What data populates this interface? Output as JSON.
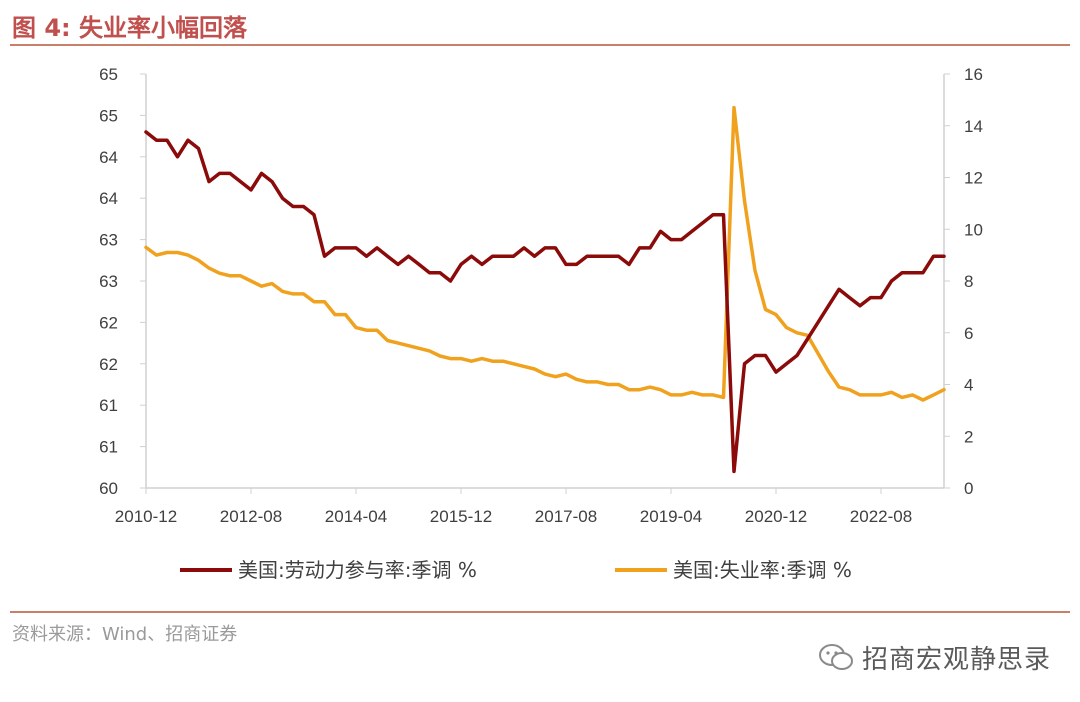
{
  "figure_title": "图 4:  失业率小幅回落",
  "source": "资料来源：Wind、招商证券",
  "watermark": "招商宏观静思录",
  "colors": {
    "lfpr": "#8b0a0a",
    "unemp": "#f0a21e",
    "accent": "#c0504d"
  },
  "chart_data": {
    "type": "line",
    "x_tick_labels": [
      "2010-12",
      "2012-08",
      "2014-04",
      "2015-12",
      "2017-08",
      "2019-04",
      "2020-12",
      "2022-08"
    ],
    "left_axis": {
      "ylim": [
        60,
        65
      ],
      "tick_labels": [
        "60",
        "61",
        "61",
        "62",
        "62",
        "63",
        "63",
        "64",
        "64",
        "65",
        "65"
      ]
    },
    "right_axis": {
      "ylim": [
        0,
        16
      ],
      "tick_labels": [
        "0",
        "2",
        "4",
        "6",
        "8",
        "10",
        "12",
        "14",
        "16"
      ]
    },
    "grid": false,
    "legend_position": "bottom",
    "series": [
      {
        "name": "美国:劳动力参与率:季调 %",
        "axis": "left",
        "x": [
          "2010-12",
          "2011-02",
          "2011-04",
          "2011-06",
          "2011-08",
          "2011-10",
          "2011-12",
          "2012-02",
          "2012-04",
          "2012-06",
          "2012-08",
          "2012-10",
          "2012-12",
          "2013-02",
          "2013-04",
          "2013-06",
          "2013-08",
          "2013-10",
          "2013-12",
          "2014-02",
          "2014-04",
          "2014-06",
          "2014-08",
          "2014-10",
          "2014-12",
          "2015-02",
          "2015-04",
          "2015-06",
          "2015-08",
          "2015-10",
          "2015-12",
          "2016-02",
          "2016-04",
          "2016-06",
          "2016-08",
          "2016-10",
          "2016-12",
          "2017-02",
          "2017-04",
          "2017-06",
          "2017-08",
          "2017-10",
          "2017-12",
          "2018-02",
          "2018-04",
          "2018-06",
          "2018-08",
          "2018-10",
          "2018-12",
          "2019-02",
          "2019-04",
          "2019-06",
          "2019-08",
          "2019-10",
          "2019-12",
          "2020-02",
          "2020-04",
          "2020-06",
          "2020-08",
          "2020-10",
          "2020-12",
          "2021-02",
          "2021-04",
          "2021-06",
          "2021-08",
          "2021-10",
          "2021-12",
          "2022-02",
          "2022-04",
          "2022-06",
          "2022-08",
          "2022-10",
          "2022-12",
          "2023-02",
          "2023-04",
          "2023-06",
          "2023-08"
        ],
        "values": [
          64.3,
          64.2,
          64.2,
          64.0,
          64.2,
          64.1,
          63.7,
          63.8,
          63.8,
          63.7,
          63.6,
          63.8,
          63.7,
          63.5,
          63.4,
          63.4,
          63.3,
          62.8,
          62.9,
          62.9,
          62.9,
          62.8,
          62.9,
          62.8,
          62.7,
          62.8,
          62.7,
          62.6,
          62.6,
          62.5,
          62.7,
          62.8,
          62.7,
          62.8,
          62.8,
          62.8,
          62.9,
          62.8,
          62.9,
          62.9,
          62.7,
          62.7,
          62.8,
          62.8,
          62.8,
          62.8,
          62.7,
          62.9,
          62.9,
          63.1,
          63.0,
          63.0,
          63.1,
          63.2,
          63.3,
          63.3,
          60.2,
          61.5,
          61.6,
          61.6,
          61.4,
          61.5,
          61.6,
          61.8,
          62.0,
          62.2,
          62.4,
          62.3,
          62.2,
          62.3,
          62.3,
          62.5,
          62.6,
          62.6,
          62.6,
          62.8,
          62.8
        ]
      },
      {
        "name": "美国:失业率:季调 %",
        "axis": "right",
        "x": [
          "2010-12",
          "2011-02",
          "2011-04",
          "2011-06",
          "2011-08",
          "2011-10",
          "2011-12",
          "2012-02",
          "2012-04",
          "2012-06",
          "2012-08",
          "2012-10",
          "2012-12",
          "2013-02",
          "2013-04",
          "2013-06",
          "2013-08",
          "2013-10",
          "2013-12",
          "2014-02",
          "2014-04",
          "2014-06",
          "2014-08",
          "2014-10",
          "2014-12",
          "2015-02",
          "2015-04",
          "2015-06",
          "2015-08",
          "2015-10",
          "2015-12",
          "2016-02",
          "2016-04",
          "2016-06",
          "2016-08",
          "2016-10",
          "2016-12",
          "2017-02",
          "2017-04",
          "2017-06",
          "2017-08",
          "2017-10",
          "2017-12",
          "2018-02",
          "2018-04",
          "2018-06",
          "2018-08",
          "2018-10",
          "2018-12",
          "2019-02",
          "2019-04",
          "2019-06",
          "2019-08",
          "2019-10",
          "2019-12",
          "2020-02",
          "2020-04",
          "2020-06",
          "2020-08",
          "2020-10",
          "2020-12",
          "2021-02",
          "2021-04",
          "2021-06",
          "2021-08",
          "2021-10",
          "2021-12",
          "2022-02",
          "2022-04",
          "2022-06",
          "2022-08",
          "2022-10",
          "2022-12",
          "2023-02",
          "2023-04",
          "2023-06",
          "2023-08"
        ],
        "values": [
          9.3,
          9.0,
          9.1,
          9.1,
          9.0,
          8.8,
          8.5,
          8.3,
          8.2,
          8.2,
          8.0,
          7.8,
          7.9,
          7.6,
          7.5,
          7.5,
          7.2,
          7.2,
          6.7,
          6.7,
          6.2,
          6.1,
          6.1,
          5.7,
          5.6,
          5.5,
          5.4,
          5.3,
          5.1,
          5.0,
          5.0,
          4.9,
          5.0,
          4.9,
          4.9,
          4.8,
          4.7,
          4.6,
          4.4,
          4.3,
          4.4,
          4.2,
          4.1,
          4.1,
          4.0,
          4.0,
          3.8,
          3.8,
          3.9,
          3.8,
          3.6,
          3.6,
          3.7,
          3.6,
          3.6,
          3.5,
          14.7,
          11.1,
          8.4,
          6.9,
          6.7,
          6.2,
          6.0,
          5.9,
          5.2,
          4.5,
          3.9,
          3.8,
          3.6,
          3.6,
          3.6,
          3.7,
          3.5,
          3.6,
          3.4,
          3.6,
          3.8
        ]
      }
    ]
  }
}
